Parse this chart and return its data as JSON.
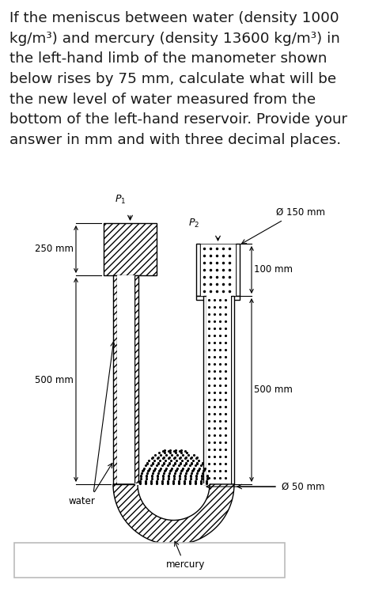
{
  "text_block": "If the meniscus between water (density 1000\nkg/m³) and mercury (density 13600 kg/m³) in\nthe left-hand limb of the manometer shown\nbelow rises by 75 mm, calculate what will be\nthe new level of water measured from the\nbottom of the left-hand reservoir. Provide your\nanswer in mm and with three decimal places.",
  "text_fontsize": 13.2,
  "text_color": "#1a1a1a",
  "bg_color": "#ffffff",
  "label_250mm": "250 mm",
  "label_500mm_left": "500 mm",
  "label_500mm_right": "500 mm",
  "label_100mm": "100 mm",
  "label_dia150": "Ø 150 mm",
  "label_dia50": "Ø 50 mm",
  "label_water": "water",
  "label_mercury": "mercury",
  "label_P1": "$P_1$",
  "label_P2": "$P_2$",
  "answer_box_border": "#aaaaaa"
}
